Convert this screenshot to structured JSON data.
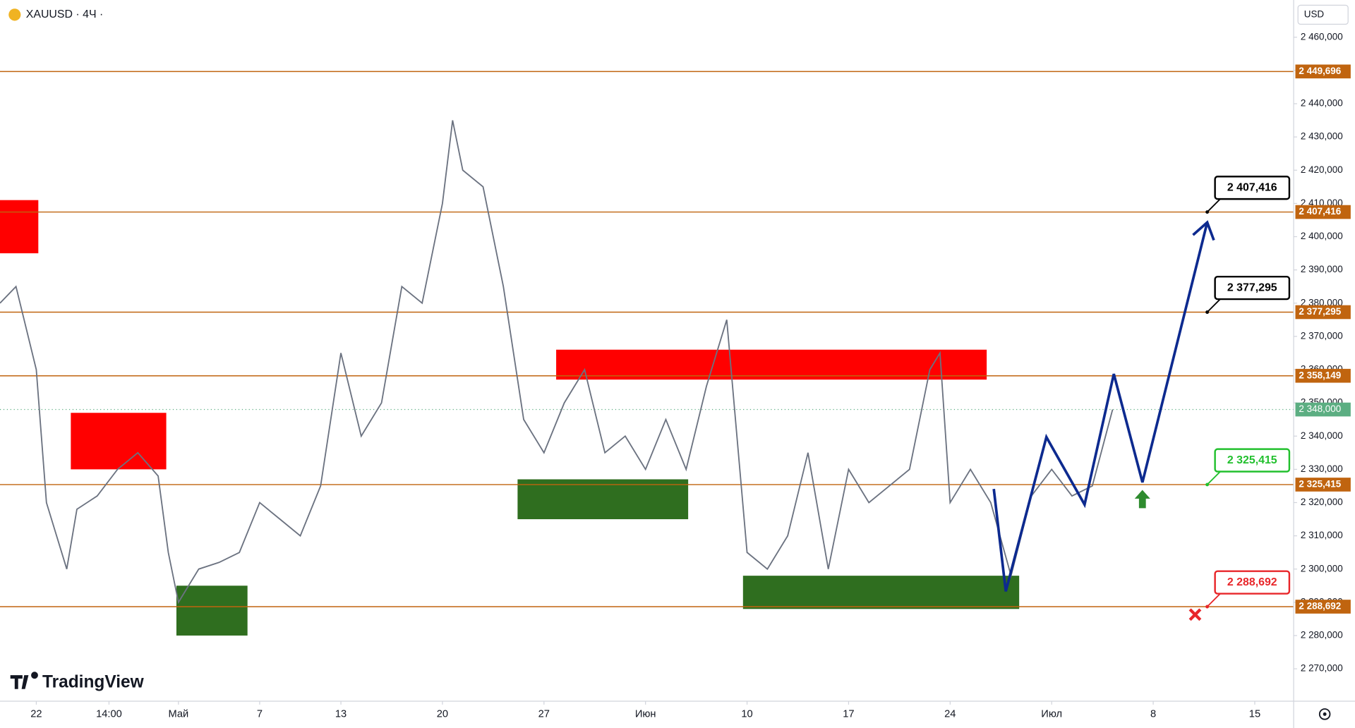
{
  "chart_data": {
    "type": "line",
    "symbol": "XAUUSD · 4Ч ·",
    "currency": "USD",
    "brand": "TradingView",
    "xlim": [
      -1.787,
      61.915
    ],
    "ylim": [
      2260.26,
      2471.2
    ],
    "xticks": [
      {
        "value": 0,
        "label": "22"
      },
      {
        "value": 3.58,
        "label": "14:00"
      },
      {
        "value": 7,
        "label": "Май"
      },
      {
        "value": 11,
        "label": "7"
      },
      {
        "value": 15,
        "label": "13"
      },
      {
        "value": 20,
        "label": "20"
      },
      {
        "value": 25,
        "label": "27"
      },
      {
        "value": 30,
        "label": "Июн"
      },
      {
        "value": 35,
        "label": "10"
      },
      {
        "value": 40,
        "label": "17"
      },
      {
        "value": 45,
        "label": "24"
      },
      {
        "value": 50,
        "label": "Июл"
      },
      {
        "value": 55,
        "label": "8"
      },
      {
        "value": 60,
        "label": "15"
      }
    ],
    "yticks": [
      {
        "value": 2270,
        "label": "2 270,000"
      },
      {
        "value": 2280,
        "label": "2 280,000"
      },
      {
        "value": 2290,
        "label": "2 290,000"
      },
      {
        "value": 2300,
        "label": "2 300,000"
      },
      {
        "value": 2310,
        "label": "2 310,000"
      },
      {
        "value": 2320,
        "label": "2 320,000"
      },
      {
        "value": 2330,
        "label": "2 330,000"
      },
      {
        "value": 2340,
        "label": "2 340,000"
      },
      {
        "value": 2350,
        "label": "2 350,000"
      },
      {
        "value": 2360,
        "label": "2 360,000"
      },
      {
        "value": 2370,
        "label": "2 370,000"
      },
      {
        "value": 2380,
        "label": "2 380,000"
      },
      {
        "value": 2390,
        "label": "2 390,000"
      },
      {
        "value": 2400,
        "label": "2 400,000"
      },
      {
        "value": 2410,
        "label": "2 410,000"
      },
      {
        "value": 2420,
        "label": "2 420,000"
      },
      {
        "value": 2430,
        "label": "2 430,000"
      },
      {
        "value": 2440,
        "label": "2 440,000"
      },
      {
        "value": 2450,
        "label": "2 450,000"
      },
      {
        "value": 2460,
        "label": "2 460,000"
      }
    ],
    "series": [
      {
        "name": "XAUUSD",
        "color": "#6b7280",
        "x": [
          -1.787,
          -1,
          0,
          0.5,
          1,
          1.5,
          2,
          3,
          4,
          5,
          6,
          6.5,
          7,
          8,
          9,
          10,
          11,
          12,
          13,
          14,
          15,
          16,
          17,
          18,
          19,
          20,
          20.5,
          21,
          22,
          23,
          24,
          25,
          26,
          27,
          28,
          29,
          30,
          31,
          32,
          33,
          34,
          35,
          36,
          37,
          38,
          39,
          40,
          41,
          42,
          43,
          44,
          44.5,
          45,
          46,
          47,
          48,
          49,
          50,
          51,
          52,
          53
        ],
        "values": [
          2380,
          2385,
          2360,
          2320,
          2310,
          2300,
          2318,
          2322,
          2330,
          2335,
          2328,
          2305,
          2290,
          2300,
          2302,
          2305,
          2320,
          2315,
          2310,
          2325,
          2365,
          2340,
          2350,
          2385,
          2380,
          2410,
          2435,
          2420,
          2415,
          2385,
          2345,
          2335,
          2350,
          2360,
          2335,
          2340,
          2330,
          2345,
          2330,
          2355,
          2375,
          2305,
          2300,
          2310,
          2335,
          2300,
          2330,
          2320,
          2325,
          2330,
          2360,
          2365,
          2320,
          2330,
          2320,
          2298,
          2322,
          2330,
          2322,
          2325,
          2348
        ]
      }
    ],
    "levels": [
      {
        "value": 2449.696,
        "label": "2 449,696"
      },
      {
        "value": 2407.416,
        "label": "2 407,416"
      },
      {
        "value": 2377.295,
        "label": "2 377,295"
      },
      {
        "value": 2358.149,
        "label": "2 358,149"
      },
      {
        "value": 2325.415,
        "label": "2 325,415"
      },
      {
        "value": 2288.692,
        "label": "2 288,692"
      }
    ],
    "level_color": "#c0640f",
    "current": {
      "value": 2348.0,
      "label": "2 348,000",
      "color": "#5cae82"
    },
    "zones": [
      {
        "x0": -1.787,
        "x1": 0.1,
        "y0": 2395,
        "y1": 2411,
        "color": "#ff0000"
      },
      {
        "x0": 1.7,
        "x1": 6.4,
        "y0": 2330,
        "y1": 2347,
        "color": "#ff0000"
      },
      {
        "x0": 25.6,
        "x1": 46.8,
        "y0": 2357,
        "y1": 2366,
        "color": "#ff0000"
      },
      {
        "x0": 6.9,
        "x1": 10.4,
        "y0": 2280,
        "y1": 2295,
        "color": "#2f6e1f"
      },
      {
        "x0": 23.7,
        "x1": 32.1,
        "y0": 2315,
        "y1": 2327,
        "color": "#2f6e1f"
      },
      {
        "x0": 34.8,
        "x1": 48.4,
        "y0": 2288,
        "y1": 2298,
        "color": "#2f6e1f"
      }
    ],
    "forecast": {
      "color": "#0d2a8f",
      "x": [
        47.15,
        47.74,
        49.74,
        51.62,
        53.06,
        54.47,
        57.66
      ],
      "values": [
        2324.1,
        2293.3,
        2339.7,
        2319.4,
        2358.7,
        2326.1,
        2404.3
      ]
    },
    "callouts": [
      {
        "value": 2407.416,
        "label": "2 407,416",
        "color": "#000000"
      },
      {
        "value": 2377.295,
        "label": "2 377,295",
        "color": "#000000"
      },
      {
        "value": 2325.415,
        "label": "2 325,415",
        "color": "#22c02e"
      },
      {
        "value": 2288.692,
        "label": "2 288,692",
        "color": "#e8262a"
      }
    ]
  }
}
